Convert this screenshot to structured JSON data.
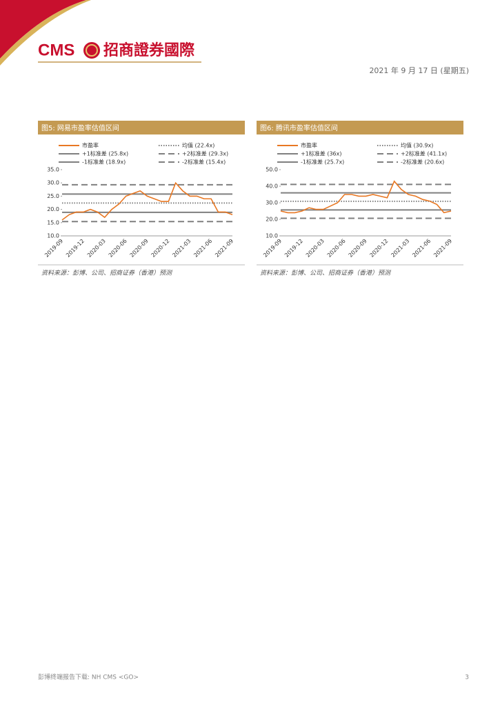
{
  "header": {
    "logo": "CMS",
    "company": "招商證券國際",
    "date": "2021 年 9 月 17 日 (星期五)"
  },
  "chart_data": [
    {
      "type": "line",
      "title": "图5: 网易市盈率估值区间",
      "source": "资料来源：彭博、公司、招商证券（香港）预测",
      "categories": [
        "2019-09",
        null,
        null,
        "2019-12",
        null,
        null,
        "2020-03",
        null,
        null,
        "2020-06",
        null,
        null,
        "2020-09",
        null,
        null,
        "2020-12",
        null,
        null,
        "2021-03",
        null,
        null,
        "2021-06",
        null,
        null,
        "2021-09"
      ],
      "series": [
        {
          "name": "市盈率",
          "color": "#e87722",
          "values": [
            16,
            18,
            19,
            19,
            20,
            19,
            17,
            20,
            22,
            25,
            26,
            27,
            25,
            24,
            23,
            23,
            30,
            27,
            25,
            25,
            24,
            24,
            19,
            19,
            18
          ]
        }
      ],
      "reference_lines": [
        {
          "name": "均值 (22.4x)",
          "value": 22.4,
          "style": "dotted",
          "color": "#7f7f7f"
        },
        {
          "name": "+1标准差 (25.8x)",
          "value": 25.8,
          "style": "solid",
          "color": "#7f7f7f"
        },
        {
          "name": "+2标准差 (29.3x)",
          "value": 29.3,
          "style": "dashed",
          "color": "#7f7f7f"
        },
        {
          "name": "-1标准差 (18.9x)",
          "value": 18.9,
          "style": "solid",
          "color": "#7f7f7f"
        },
        {
          "name": "-2标准差 (15.4x)",
          "value": 15.4,
          "style": "dashed",
          "color": "#7f7f7f"
        }
      ],
      "ylim": [
        10,
        35
      ],
      "yticks": [
        {
          "value": 10,
          "label": "10.0"
        },
        {
          "value": 15,
          "label": "15.0"
        },
        {
          "value": 20,
          "label": "20.0"
        },
        {
          "value": 25,
          "label": "25.0"
        },
        {
          "value": 30,
          "label": "30.0"
        },
        {
          "value": 35,
          "label": "35.0"
        }
      ]
    },
    {
      "type": "line",
      "title": "图6: 腾讯市盈率估值区间",
      "source": "资料来源：彭博、公司、招商证券（香港）预测",
      "categories": [
        "2019-09",
        null,
        null,
        "2019-12",
        null,
        null,
        "2020-03",
        null,
        null,
        "2020-06",
        null,
        null,
        "2020-09",
        null,
        null,
        "2020-12",
        null,
        null,
        "2021-03",
        null,
        null,
        "2021-06",
        null,
        null,
        "2021-09"
      ],
      "series": [
        {
          "name": "市盈率",
          "color": "#e87722",
          "values": [
            25,
            24,
            24,
            25,
            27,
            26,
            26,
            28,
            30,
            35,
            35,
            34,
            34,
            35,
            34,
            33,
            43,
            38,
            35,
            34,
            32,
            31,
            29,
            24,
            25
          ]
        }
      ],
      "reference_lines": [
        {
          "name": "均值 (30.9x)",
          "value": 30.9,
          "style": "dotted",
          "color": "#7f7f7f"
        },
        {
          "name": "+1标准差 (36x)",
          "value": 36,
          "style": "solid",
          "color": "#7f7f7f"
        },
        {
          "name": "+2标准差 (41.1x)",
          "value": 41.1,
          "style": "dashed",
          "color": "#7f7f7f"
        },
        {
          "name": "-1标准差 (25.7x)",
          "value": 25.7,
          "style": "solid",
          "color": "#7f7f7f"
        },
        {
          "name": "-2标准差 (20.6x)",
          "value": 20.6,
          "style": "dashed",
          "color": "#7f7f7f"
        }
      ],
      "ylim": [
        10,
        50
      ],
      "yticks": [
        {
          "value": 10,
          "label": "10.0"
        },
        {
          "value": 20,
          "label": "20.0"
        },
        {
          "value": 30,
          "label": "30.0"
        },
        {
          "value": 40,
          "label": "40.0"
        },
        {
          "value": 50,
          "label": "50.0"
        }
      ]
    }
  ],
  "footer": {
    "text": "彭博终端报告下载: NH CMS <GO>",
    "page": "3"
  }
}
